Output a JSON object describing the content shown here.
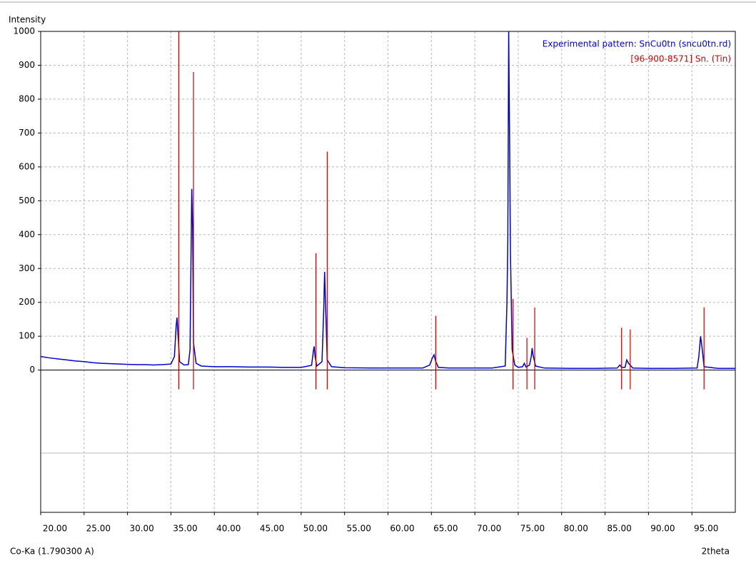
{
  "chart_data": {
    "type": "line",
    "y_label": "Intensity",
    "x_label": "2theta",
    "source_label": "Co-Ka (1.790300 A)",
    "xlim": [
      20,
      100
    ],
    "ylim": [
      -420,
      1000
    ],
    "xticks": [
      {
        "value": 20,
        "label": "20.00"
      },
      {
        "value": 25,
        "label": "25.00"
      },
      {
        "value": 30,
        "label": "30.00"
      },
      {
        "value": 35,
        "label": "35.00"
      },
      {
        "value": 40,
        "label": "40.00"
      },
      {
        "value": 45,
        "label": "45.00"
      },
      {
        "value": 50,
        "label": "50.00"
      },
      {
        "value": 55,
        "label": "55.00"
      },
      {
        "value": 60,
        "label": "60.00"
      },
      {
        "value": 65,
        "label": "65.00"
      },
      {
        "value": 70,
        "label": "70.00"
      },
      {
        "value": 75,
        "label": "75.00"
      },
      {
        "value": 80,
        "label": "80.00"
      },
      {
        "value": 85,
        "label": "85.00"
      },
      {
        "value": 90,
        "label": "90.00"
      },
      {
        "value": 95,
        "label": "95.00"
      }
    ],
    "yticks": [
      0,
      100,
      200,
      300,
      400,
      500,
      600,
      700,
      800,
      900,
      1000
    ],
    "grid": true,
    "legend": "top-right",
    "series": [
      {
        "name": "Experimental pattern: SnCu0tn (sncu0tn.rd)",
        "type": "line",
        "color": "#0000cc",
        "x": [
          20,
          21,
          22,
          23,
          24,
          25,
          26,
          27,
          28,
          29,
          30,
          31,
          32,
          33,
          34,
          35,
          35.4,
          35.6,
          35.7,
          35.8,
          36.0,
          36.5,
          37.0,
          37.2,
          37.3,
          37.4,
          37.5,
          37.6,
          37.9,
          38.5,
          40,
          42,
          44,
          46,
          48,
          50,
          51.2,
          51.4,
          51.5,
          51.6,
          51.8,
          52.4,
          52.6,
          52.7,
          52.8,
          53.0,
          53.5,
          55,
          58,
          61,
          64,
          64.8,
          65.1,
          65.3,
          65.5,
          65.8,
          67,
          70,
          72,
          73.5,
          73.7,
          73.8,
          73.9,
          74.0,
          74.1,
          74.3,
          74.6,
          75.0,
          75.5,
          75.7,
          75.9,
          76.3,
          76.5,
          76.6,
          76.7,
          77.0,
          78,
          81,
          84,
          86.4,
          86.7,
          86.9,
          87.3,
          87.5,
          87.7,
          88.2,
          90,
          93,
          95.6,
          95.8,
          96.0,
          96.2,
          96.4,
          98,
          100
        ],
        "values": [
          40,
          36,
          33,
          30,
          27,
          25,
          22,
          20,
          19,
          18,
          17,
          16,
          16,
          15,
          16,
          18,
          40,
          130,
          155,
          110,
          25,
          15,
          16,
          60,
          300,
          535,
          420,
          80,
          20,
          12,
          10,
          10,
          9,
          9,
          8,
          8,
          14,
          55,
          70,
          40,
          12,
          25,
          180,
          290,
          200,
          30,
          10,
          7,
          6,
          6,
          6,
          15,
          35,
          45,
          25,
          8,
          6,
          6,
          6,
          12,
          200,
          380,
          1000,
          700,
          350,
          60,
          15,
          8,
          10,
          20,
          9,
          15,
          40,
          65,
          45,
          12,
          6,
          5,
          5,
          6,
          15,
          8,
          8,
          30,
          20,
          6,
          5,
          5,
          6,
          40,
          100,
          60,
          10,
          5,
          5
        ]
      },
      {
        "name": "[96-900-8571] Sn. (Tin)",
        "type": "stick",
        "color": "#cc0000",
        "x": [
          35.9,
          37.6,
          51.7,
          53.0,
          65.5,
          74.4,
          76.0,
          76.9,
          86.9,
          87.9,
          96.4
        ],
        "values": [
          1000,
          880,
          345,
          645,
          160,
          210,
          95,
          185,
          125,
          120,
          185
        ]
      }
    ]
  }
}
